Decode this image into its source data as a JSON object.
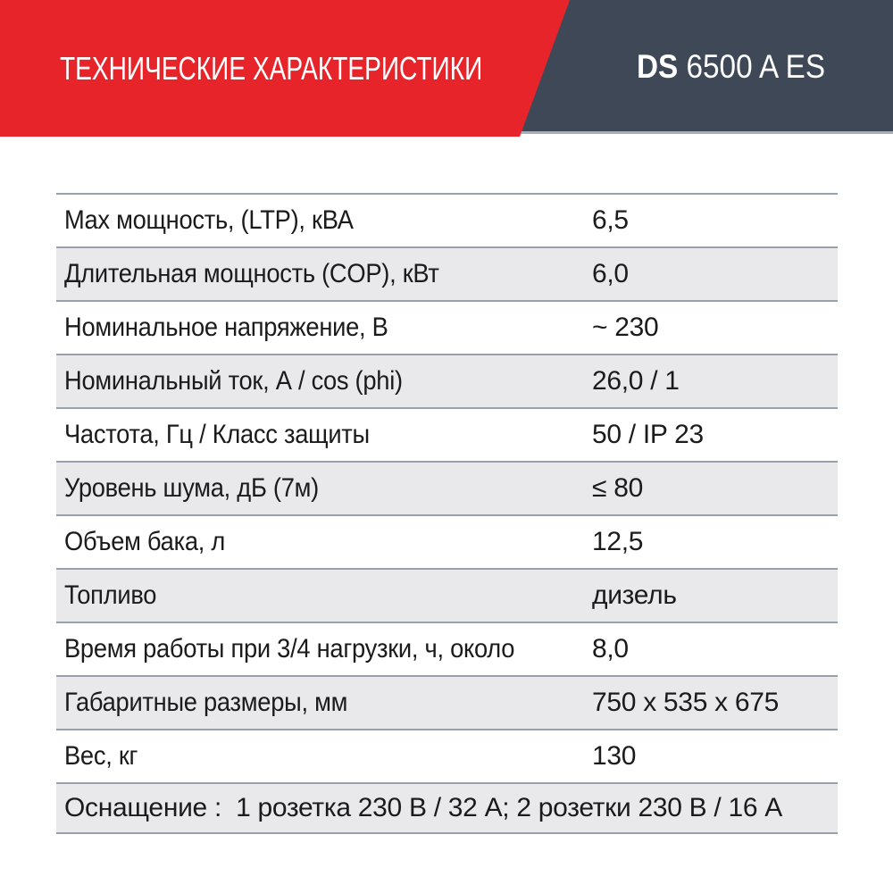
{
  "theme": {
    "red": "#e8242b",
    "slate": "#3e4856",
    "banner_edge": "#a9afba",
    "row_gray": "#e9e9eb",
    "line": "#99a1aa",
    "text_color": "#1b1b1b"
  },
  "header": {
    "title": "ТЕХНИЧЕСКИЕ ХАРАКТЕРИСТИКИ",
    "model_bold": "DS",
    "model_rest": " 6500 A ES"
  },
  "table": {
    "rows": [
      {
        "label": "Max мощность, (LTP), кВА",
        "value": "6,5"
      },
      {
        "label": "Длительная мощность (COP), кВт",
        "value": "6,0"
      },
      {
        "label": "Номинальное напряжение, В",
        "value": "~ 230"
      },
      {
        "label": "Номинальный ток, А / cos (phi)",
        "value": "26,0 / 1"
      },
      {
        "label": "Частота, Гц / Класс защиты",
        "value": "50 / IP 23"
      },
      {
        "label": "Уровень шума, дБ (7м)",
        "value": "≤ 80"
      },
      {
        "label": "Объем бака, л",
        "value": "12,5"
      },
      {
        "label": "Топливо",
        "value": "дизель"
      },
      {
        "label": "Время работы при 3/4 нагрузки, ч, около",
        "value": "8,0"
      },
      {
        "label": "Габаритные размеры, мм",
        "value": "750 x 535 x 675"
      },
      {
        "label": "Вес, кг",
        "value": "130"
      }
    ],
    "footer": "Оснащение :  1 розетка 230 В / 32 А; 2 розетки 230 В / 16 А"
  }
}
